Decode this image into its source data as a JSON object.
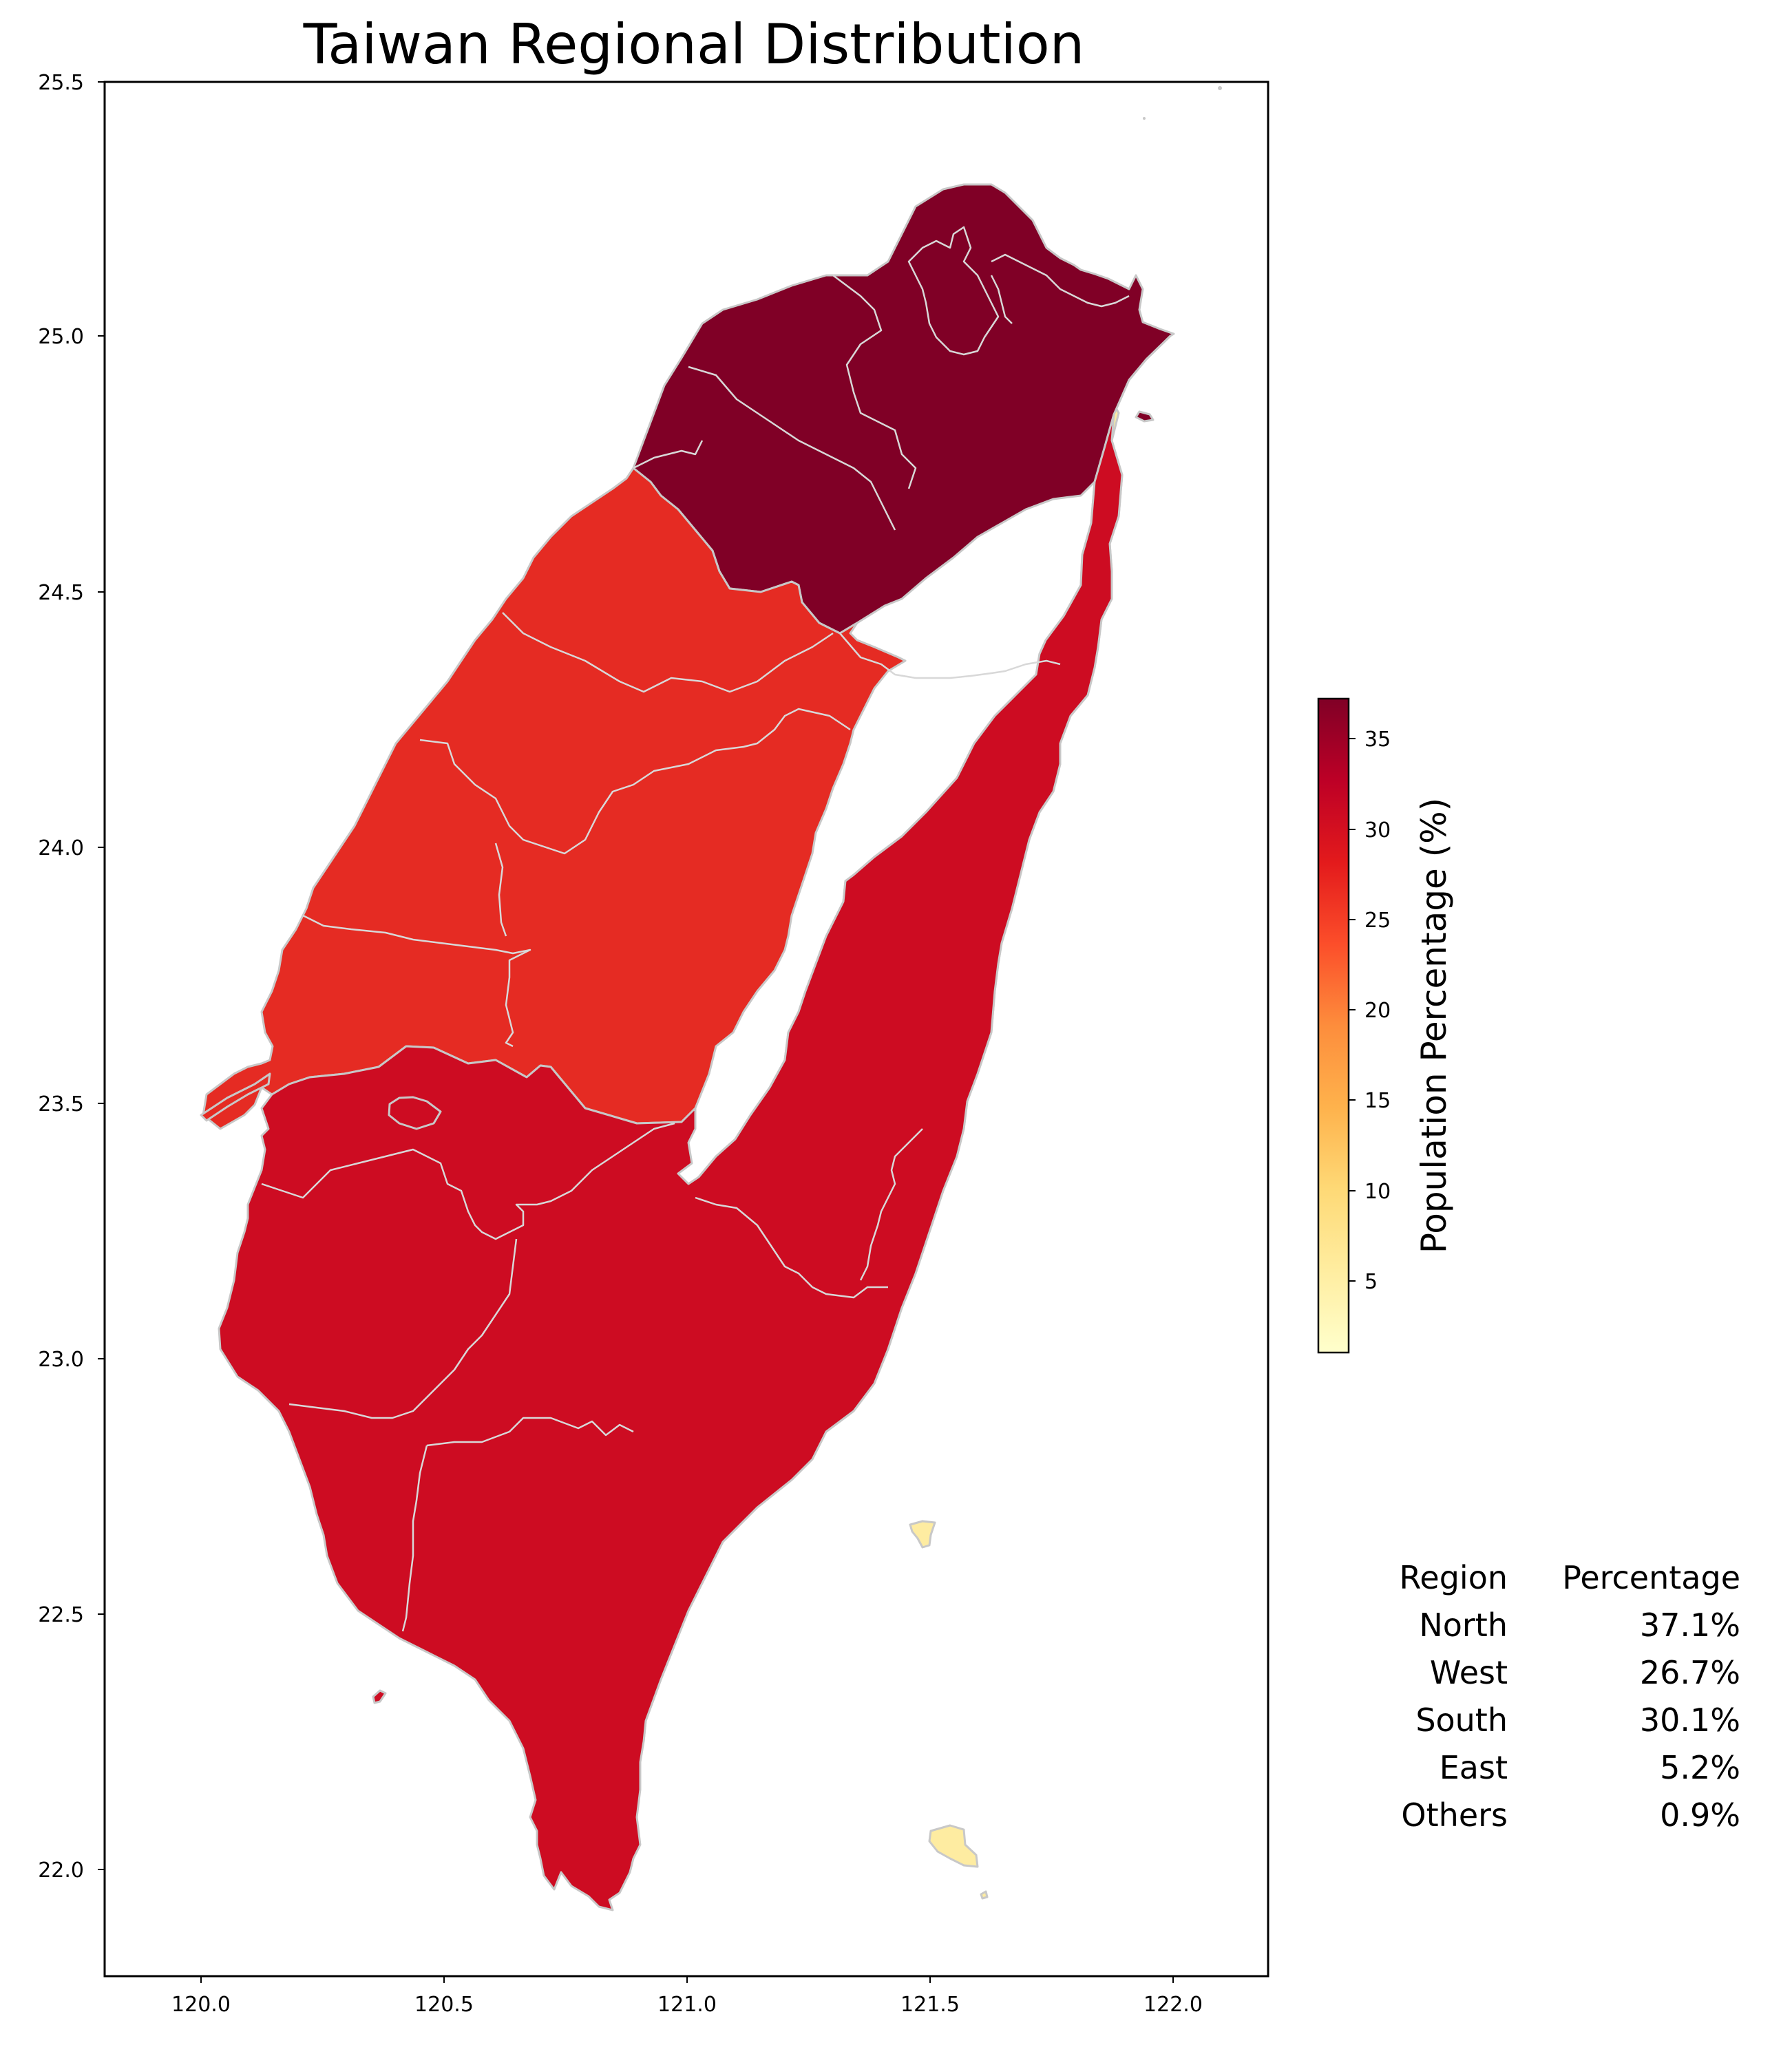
{
  "title": "Taiwan Regional Distribution",
  "axes": {
    "x_ticks": [
      "120.0",
      "120.5",
      "121.0",
      "121.5",
      "122.0"
    ],
    "y_ticks": [
      "25.5",
      "25.0",
      "24.5",
      "24.0",
      "23.5",
      "23.0",
      "22.5",
      "22.0"
    ],
    "x_range": [
      119.8,
      122.2
    ],
    "y_range": [
      21.8,
      25.5
    ]
  },
  "colorbar": {
    "label": "Population Percentage (%)",
    "ticks": [
      "5",
      "10",
      "15",
      "20",
      "25",
      "30",
      "35"
    ],
    "colormap": "YlOrRd",
    "range": [
      0.9,
      37.1
    ]
  },
  "colors": {
    "north": "#800026",
    "west": "#e52b23",
    "south": "#cd0c22",
    "east": "#feeca1",
    "border": "#c8c8c8"
  },
  "table": {
    "header": [
      "Region",
      "Percentage"
    ],
    "rows": [
      {
        "region": "North",
        "value": "37.1%"
      },
      {
        "region": "West",
        "value": "26.7%"
      },
      {
        "region": "South",
        "value": "30.1%"
      },
      {
        "region": "East",
        "value": "5.2%"
      },
      {
        "region": "Others",
        "value": "0.9%"
      }
    ]
  },
  "chart_data": {
    "type": "choropleth",
    "title": "Taiwan Regional Distribution",
    "regions": [
      "North",
      "West",
      "South",
      "East",
      "Others"
    ],
    "values": [
      37.1,
      26.7,
      30.1,
      5.2,
      0.9
    ],
    "unit": "%",
    "xlim": [
      119.8,
      122.2
    ],
    "ylim": [
      21.8,
      25.5
    ],
    "legend": "colorbar right"
  }
}
